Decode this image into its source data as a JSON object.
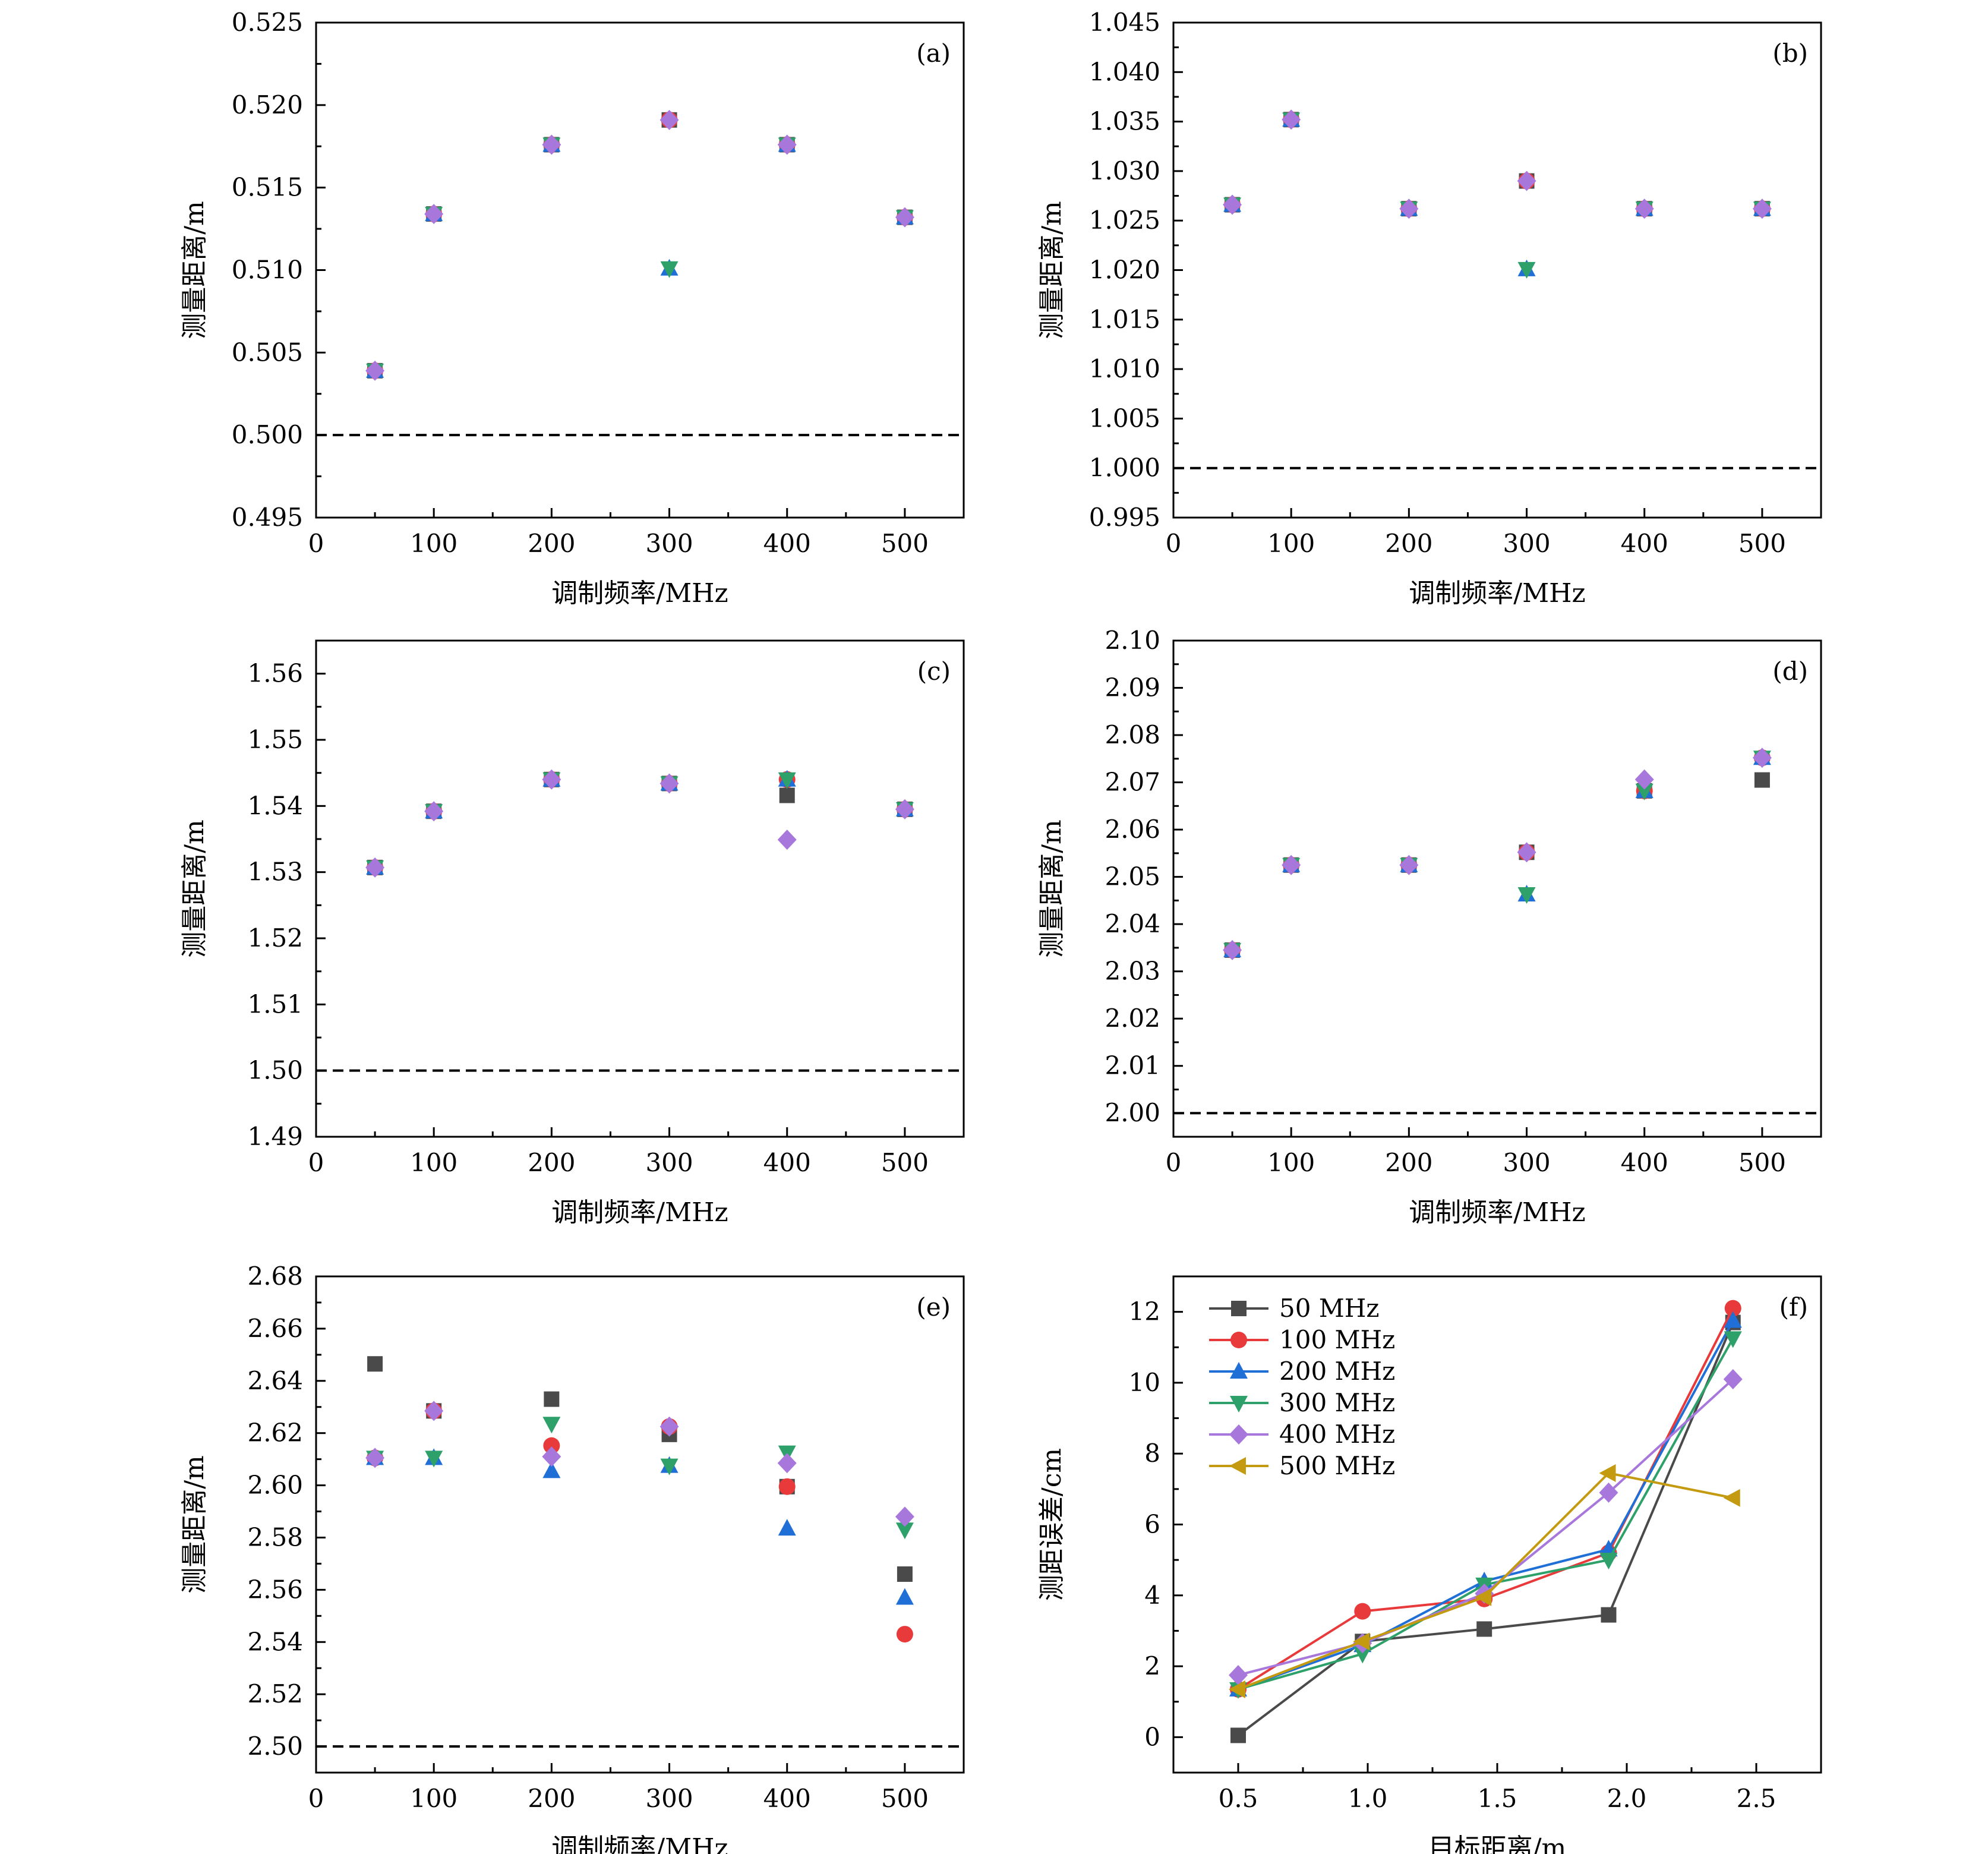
{
  "colors": {
    "50": "#4a4a4a",
    "100": "#e8393b",
    "200": "#1f6fd6",
    "300": "#2ea06a",
    "400": "#a777dc",
    "500": "#c49a10"
  },
  "series_names": [
    "50 MHz",
    "100 MHz",
    "200 MHz",
    "300 MHz",
    "400 MHz",
    "500 MHz"
  ],
  "chart_data": [
    {
      "type": "scatter",
      "panel": "(a)",
      "xlabel": "调制频率/MHz",
      "ylabel": "测量距离/m",
      "xlim": [
        0,
        550
      ],
      "ylim": [
        0.495,
        0.525
      ],
      "xticks": [
        0,
        100,
        200,
        300,
        400,
        500
      ],
      "yticks": [
        "0.495",
        "0.500",
        "0.505",
        "0.510",
        "0.515",
        "0.520",
        "0.525"
      ],
      "yticks_values": [
        0.495,
        0.5,
        0.505,
        0.51,
        0.515,
        0.52,
        0.525
      ],
      "reference_line": 0.5,
      "series": [
        {
          "name": "50 MHz",
          "x": [
            50,
            100,
            200,
            300,
            400,
            500
          ],
          "y": [
            0.5039,
            0.5134,
            0.5176,
            0.5191,
            0.5176,
            0.5132
          ]
        },
        {
          "name": "100 MHz",
          "x": [
            50,
            100,
            200,
            300,
            400,
            500
          ],
          "y": [
            0.5039,
            0.5134,
            0.5176,
            0.5191,
            0.5176,
            0.5132
          ]
        },
        {
          "name": "200 MHz",
          "x": [
            50,
            100,
            200,
            300,
            400,
            500
          ],
          "y": [
            0.5039,
            0.5134,
            0.5176,
            0.5101,
            0.5176,
            0.5132
          ]
        },
        {
          "name": "300 MHz",
          "x": [
            50,
            100,
            200,
            300,
            400,
            500
          ],
          "y": [
            0.5039,
            0.5134,
            0.5176,
            0.5101,
            0.5176,
            0.5132
          ]
        },
        {
          "name": "400 MHz",
          "x": [
            50,
            100,
            200,
            300,
            400,
            500
          ],
          "y": [
            0.5039,
            0.5134,
            0.5176,
            0.5191,
            0.5176,
            0.5132
          ]
        }
      ]
    },
    {
      "type": "scatter",
      "panel": "(b)",
      "xlabel": "调制频率/MHz",
      "ylabel": "测量距离/m",
      "xlim": [
        0,
        550
      ],
      "ylim": [
        0.995,
        1.045
      ],
      "xticks": [
        0,
        100,
        200,
        300,
        400,
        500
      ],
      "yticks": [
        "0.995",
        "1.000",
        "1.005",
        "1.010",
        "1.015",
        "1.020",
        "1.025",
        "1.030",
        "1.035",
        "1.040",
        "1.045"
      ],
      "yticks_values": [
        0.995,
        1.0,
        1.005,
        1.01,
        1.015,
        1.02,
        1.025,
        1.03,
        1.035,
        1.04,
        1.045
      ],
      "reference_line": 1.0,
      "series": [
        {
          "name": "50 MHz",
          "x": [
            50,
            100,
            200,
            300,
            400,
            500
          ],
          "y": [
            1.0266,
            1.0352,
            1.0262,
            1.029,
            1.0262,
            1.0262
          ]
        },
        {
          "name": "100 MHz",
          "x": [
            50,
            100,
            200,
            300,
            400,
            500
          ],
          "y": [
            1.0266,
            1.0352,
            1.0262,
            1.029,
            1.0262,
            1.0262
          ]
        },
        {
          "name": "200 MHz",
          "x": [
            50,
            100,
            200,
            300,
            400,
            500
          ],
          "y": [
            1.0266,
            1.0352,
            1.0262,
            1.0201,
            1.0262,
            1.0262
          ]
        },
        {
          "name": "300 MHz",
          "x": [
            50,
            100,
            200,
            300,
            400,
            500
          ],
          "y": [
            1.0266,
            1.0352,
            1.0262,
            1.0201,
            1.0262,
            1.0262
          ]
        },
        {
          "name": "400 MHz",
          "x": [
            50,
            100,
            200,
            300,
            400,
            500
          ],
          "y": [
            1.0266,
            1.0352,
            1.0262,
            1.029,
            1.0262,
            1.0262
          ]
        }
      ]
    },
    {
      "type": "scatter",
      "panel": "(c)",
      "xlabel": "调制频率/MHz",
      "ylabel": "测量距离/m",
      "xlim": [
        0,
        550
      ],
      "ylim": [
        1.49,
        1.565
      ],
      "xticks": [
        0,
        100,
        200,
        300,
        400,
        500
      ],
      "yticks": [
        "1.49",
        "1.50",
        "1.51",
        "1.52",
        "1.53",
        "1.54",
        "1.55",
        "1.56"
      ],
      "yticks_values": [
        1.49,
        1.5,
        1.51,
        1.52,
        1.53,
        1.54,
        1.55,
        1.56
      ],
      "reference_line": 1.5,
      "series": [
        {
          "name": "50 MHz",
          "x": [
            50,
            100,
            200,
            300,
            400,
            500
          ],
          "y": [
            1.5307,
            1.5392,
            1.544,
            1.5434,
            1.5416,
            1.5395
          ]
        },
        {
          "name": "100 MHz",
          "x": [
            50,
            100,
            200,
            300,
            400,
            500
          ],
          "y": [
            1.5307,
            1.5392,
            1.544,
            1.5434,
            1.544,
            1.5395
          ]
        },
        {
          "name": "200 MHz",
          "x": [
            50,
            100,
            200,
            300,
            400,
            500
          ],
          "y": [
            1.5307,
            1.5392,
            1.544,
            1.5434,
            1.544,
            1.5395
          ]
        },
        {
          "name": "300 MHz",
          "x": [
            50,
            100,
            200,
            300,
            400,
            500
          ],
          "y": [
            1.5307,
            1.5392,
            1.544,
            1.5434,
            1.544,
            1.5395
          ]
        },
        {
          "name": "400 MHz",
          "x": [
            50,
            100,
            200,
            300,
            400,
            500
          ],
          "y": [
            1.5307,
            1.5392,
            1.544,
            1.5434,
            1.5349,
            1.5395
          ]
        }
      ]
    },
    {
      "type": "scatter",
      "panel": "(d)",
      "xlabel": "调制频率/MHz",
      "ylabel": "测量距离/m",
      "xlim": [
        0,
        550
      ],
      "ylim": [
        1.995,
        2.1
      ],
      "xticks": [
        0,
        100,
        200,
        300,
        400,
        500
      ],
      "yticks": [
        "2.00",
        "2.01",
        "2.02",
        "2.03",
        "2.04",
        "2.05",
        "2.06",
        "2.07",
        "2.08",
        "2.09",
        "2.10"
      ],
      "yticks_values": [
        2.0,
        2.01,
        2.02,
        2.03,
        2.04,
        2.05,
        2.06,
        2.07,
        2.08,
        2.09,
        2.1
      ],
      "reference_line": 2.0,
      "series": [
        {
          "name": "50 MHz",
          "x": [
            50,
            100,
            200,
            300,
            400,
            500
          ],
          "y": [
            2.0345,
            2.0525,
            2.0525,
            2.0552,
            2.0682,
            2.0705
          ]
        },
        {
          "name": "100 MHz",
          "x": [
            50,
            100,
            200,
            300,
            400,
            500
          ],
          "y": [
            2.0345,
            2.0525,
            2.0525,
            2.0552,
            2.0682,
            2.0752
          ]
        },
        {
          "name": "200 MHz",
          "x": [
            50,
            100,
            200,
            300,
            400,
            500
          ],
          "y": [
            2.0345,
            2.0525,
            2.0525,
            2.0463,
            2.0682,
            2.0752
          ]
        },
        {
          "name": "300 MHz",
          "x": [
            50,
            100,
            200,
            300,
            400,
            500
          ],
          "y": [
            2.0345,
            2.0525,
            2.0525,
            2.0463,
            2.0682,
            2.0752
          ]
        },
        {
          "name": "400 MHz",
          "x": [
            50,
            100,
            200,
            300,
            400,
            500
          ],
          "y": [
            2.0345,
            2.0525,
            2.0525,
            2.0552,
            2.0706,
            2.0752
          ]
        }
      ]
    },
    {
      "type": "scatter",
      "panel": "(e)",
      "xlabel": "调制频率/MHz",
      "ylabel": "测量距离/m",
      "xlim": [
        0,
        550
      ],
      "ylim": [
        2.49,
        2.68
      ],
      "xticks": [
        0,
        100,
        200,
        300,
        400,
        500
      ],
      "yticks": [
        "2.50",
        "2.52",
        "2.54",
        "2.56",
        "2.58",
        "2.60",
        "2.62",
        "2.64",
        "2.66",
        "2.68"
      ],
      "yticks_values": [
        2.5,
        2.52,
        2.54,
        2.56,
        2.58,
        2.6,
        2.62,
        2.64,
        2.66,
        2.68
      ],
      "reference_line": 2.5,
      "series": [
        {
          "name": "50 MHz",
          "x": [
            50,
            100,
            200,
            300,
            400,
            500
          ],
          "y": [
            2.6465,
            2.6285,
            2.633,
            2.6195,
            2.5995,
            2.566
          ]
        },
        {
          "name": "100 MHz",
          "x": [
            50,
            100,
            200,
            300,
            400,
            500
          ],
          "y": [
            2.6105,
            2.6285,
            2.6152,
            2.6225,
            2.5995,
            2.543
          ]
        },
        {
          "name": "200 MHz",
          "x": [
            50,
            100,
            200,
            300,
            400,
            500
          ],
          "y": [
            2.6105,
            2.6105,
            2.6055,
            2.6075,
            2.5835,
            2.557
          ]
        },
        {
          "name": "300 MHz",
          "x": [
            50,
            100,
            200,
            300,
            400,
            500
          ],
          "y": [
            2.6105,
            2.6105,
            2.6235,
            2.6075,
            2.6125,
            2.583
          ]
        },
        {
          "name": "400 MHz",
          "x": [
            50,
            100,
            200,
            300,
            400,
            500
          ],
          "y": [
            2.6105,
            2.6285,
            2.611,
            2.6225,
            2.6085,
            2.588
          ]
        }
      ]
    },
    {
      "type": "line",
      "panel": "(f)",
      "xlabel": "目标距离/m",
      "ylabel": "测距误差/cm",
      "xlim": [
        0.25,
        2.75
      ],
      "ylim": [
        -1,
        13
      ],
      "xticks": [
        "0.5",
        "1.0",
        "1.5",
        "2.0",
        "2.5"
      ],
      "xticks_values": [
        0.5,
        1.0,
        1.5,
        2.0,
        2.5
      ],
      "yticks": [
        "0",
        "2",
        "4",
        "6",
        "8",
        "10",
        "12"
      ],
      "yticks_values": [
        0,
        2,
        4,
        6,
        8,
        10,
        12
      ],
      "legend": "top-left",
      "series": [
        {
          "name": "50 MHz",
          "x": [
            0.5,
            0.98,
            1.45,
            1.93,
            2.41
          ],
          "y": [
            0.05,
            2.7,
            3.05,
            3.45,
            11.7
          ]
        },
        {
          "name": "100 MHz",
          "x": [
            0.5,
            0.98,
            1.45,
            1.93,
            2.41
          ],
          "y": [
            1.35,
            3.55,
            3.9,
            5.2,
            12.1
          ]
        },
        {
          "name": "200 MHz",
          "x": [
            0.5,
            0.98,
            1.45,
            1.93,
            2.41
          ],
          "y": [
            1.35,
            2.6,
            4.4,
            5.3,
            11.75
          ]
        },
        {
          "name": "300 MHz",
          "x": [
            0.5,
            0.98,
            1.45,
            1.93,
            2.41
          ],
          "y": [
            1.35,
            2.35,
            4.3,
            5.0,
            11.25
          ]
        },
        {
          "name": "400 MHz",
          "x": [
            0.5,
            0.98,
            1.45,
            1.93,
            2.41
          ],
          "y": [
            1.75,
            2.65,
            4.05,
            6.9,
            10.1
          ]
        },
        {
          "name": "500 MHz",
          "x": [
            0.5,
            0.98,
            1.45,
            1.93,
            2.41
          ],
          "y": [
            1.35,
            2.7,
            3.95,
            7.45,
            6.75
          ]
        }
      ]
    }
  ]
}
